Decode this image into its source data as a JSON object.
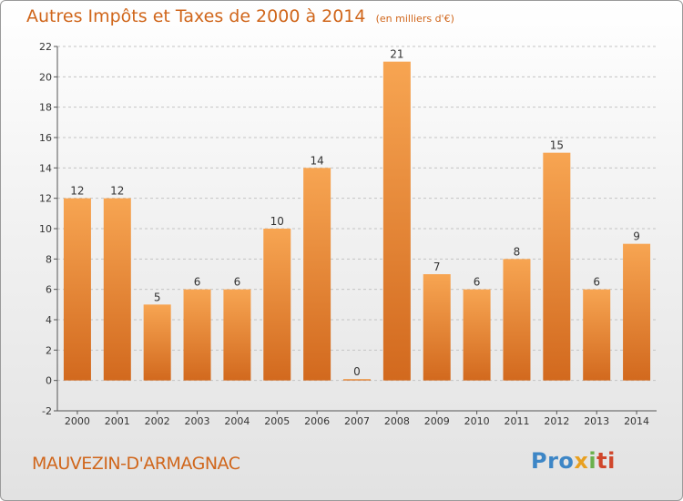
{
  "chart_data": {
    "type": "bar",
    "title": "Autres Impôts et Taxes de 2000 à 2014",
    "subtitle": "(en milliers d'€)",
    "categories": [
      "2000",
      "2001",
      "2002",
      "2003",
      "2004",
      "2005",
      "2006",
      "2007",
      "2008",
      "2009",
      "2010",
      "2011",
      "2012",
      "2013",
      "2014"
    ],
    "values": [
      12,
      12,
      5,
      6,
      6,
      10,
      14,
      0,
      21,
      7,
      6,
      8,
      15,
      6,
      9
    ],
    "data_labels": [
      "12",
      "12",
      "5",
      "6",
      "6",
      "10",
      "14",
      "0",
      "21",
      "7",
      "6",
      "8",
      "15",
      "6",
      "9"
    ],
    "ylim": [
      -2,
      22
    ],
    "yticks": [
      -2,
      0,
      2,
      4,
      6,
      8,
      10,
      12,
      14,
      16,
      18,
      20,
      22
    ],
    "grid": "horizontal dashed",
    "legend": "none",
    "bar_color_top": "#f7a552",
    "bar_color_bottom": "#d2691e"
  },
  "footer": {
    "commune": "MAUVEZIN-D'ARMAGNAC",
    "logo": {
      "part1": "Pro",
      "part2": "x",
      "part3": "i",
      "part4": "ti"
    }
  },
  "colors": {
    "accent": "#d0661b",
    "background_top": "#ffffff",
    "background_bottom": "#e2e2e2"
  }
}
